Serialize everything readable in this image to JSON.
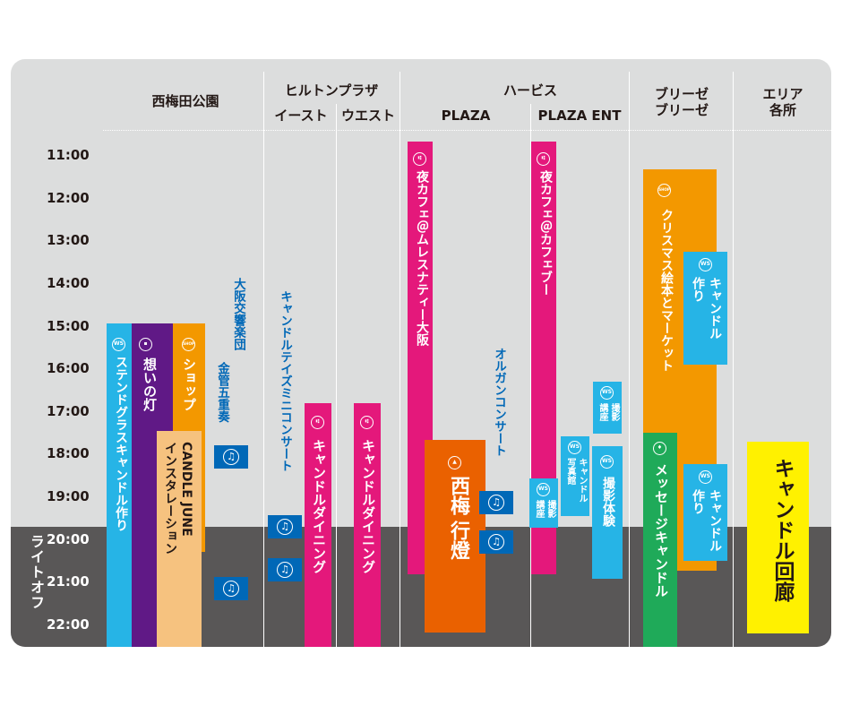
{
  "header": {
    "nishiumeda": "西梅田公園",
    "hilton": "ヒルトンプラザ",
    "hilton_east": "イースト",
    "hilton_west": "ウエスト",
    "herbis": "ハービス",
    "herbis_plaza": "PLAZA",
    "herbis_ent": "PLAZA ENT",
    "breeze_1": "ブリーゼ",
    "breeze_2": "ブリーゼ",
    "area_1": "エリア",
    "area_2": "各所"
  },
  "times": [
    "11:00",
    "12:00",
    "13:00",
    "14:00",
    "15:00",
    "16:00",
    "17:00",
    "18:00",
    "19:00",
    "20:00",
    "21:00",
    "22:00"
  ],
  "lightoff": "ライトオフ",
  "badges": {
    "ws": "WS",
    "shop": "SHOP"
  },
  "events": {
    "stained": "ステンドグラスキャンドル作り",
    "omoi": "想いの灯",
    "shop": "ショップ",
    "candle_june_1": "CANDLE JUNE",
    "candle_june_2": "インスタレーション",
    "orchestra_1": "大阪交響楽団",
    "orchestra_2": "金管五重奏",
    "candle_days": "キャンドルテイズミニコンサート",
    "dining_east": "キャンドルダイニング",
    "dining_west": "キャンドルダイニング",
    "yoru_cafe_plaza": "夜カフェ＠ムレスナティー大阪",
    "nishiumeda_lantern_1": "西梅",
    "nishiumeda_lantern_2": "行燈",
    "organ_concert": "オルガンコンサート",
    "yoru_cafe_ent": "夜カフェ＠カフェブー",
    "photo_lecture_1": "撮影",
    "photo_lecture_2": "講座",
    "photo_lecture_b_1": "撮影",
    "photo_lecture_b_2": "講座",
    "candle_studio_1": "キャンドル",
    "candle_studio_2": "写真館",
    "photo_experience": "撮影体験",
    "xmas_market": "クリスマス絵本とマーケット",
    "candle_make_a_1": "キャンドル",
    "candle_make_a_2": "作り",
    "message_candle": "メッセージキャンドル",
    "candle_make_b_1": "キャンドル",
    "candle_make_b_2": "作り",
    "candle_corridor": "キャンドル回廊"
  },
  "colors": {
    "board": "#dcdddd",
    "night": "#595757",
    "cyan": "#26b4e6",
    "purple": "#601986",
    "orange": "#f39800",
    "peach": "#f6c27f",
    "blue": "#0068b7",
    "magenta": "#e4187b",
    "deep_orange": "#ea6100",
    "green": "#1faa59",
    "yellow": "#fff100"
  }
}
